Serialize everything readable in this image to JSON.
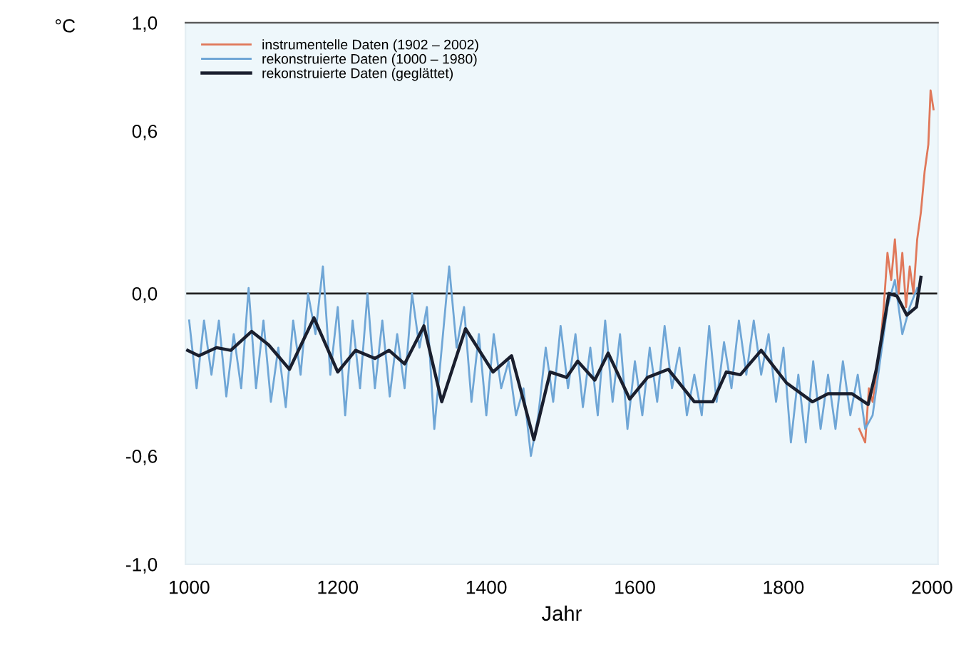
{
  "chart_data": {
    "type": "line",
    "xlabel": "Jahr",
    "ylabel": "°C",
    "xlim": [
      995,
      2008
    ],
    "ylim": [
      -1.0,
      1.0
    ],
    "xticks": [
      1000,
      1200,
      1400,
      1600,
      1800,
      2000
    ],
    "yticks": [
      {
        "value": 1.0,
        "label": "1,0"
      },
      {
        "value": 0.6,
        "label": "0,6"
      },
      {
        "value": 0.0,
        "label": "0,0"
      },
      {
        "value": -0.6,
        "label": "-0,6"
      },
      {
        "value": -1.0,
        "label": "-1,0"
      }
    ],
    "ref_lines": [
      {
        "axis": "y",
        "value": 0,
        "color": "#222222"
      }
    ],
    "legend": "top left",
    "grid": false,
    "series": [
      {
        "name": "instrumentelle Daten (1902 – 2002)",
        "color": "#e0785a",
        "x": [
          1902,
          1910,
          1915,
          1920,
          1925,
          1930,
          1935,
          1940,
          1945,
          1950,
          1955,
          1960,
          1965,
          1970,
          1975,
          1980,
          1985,
          1990,
          1995,
          1998,
          2002
        ],
        "values": [
          -0.5,
          -0.55,
          -0.35,
          -0.4,
          -0.3,
          -0.2,
          -0.05,
          0.15,
          0.05,
          0.2,
          0.0,
          0.15,
          -0.05,
          0.1,
          0.0,
          0.2,
          0.3,
          0.45,
          0.55,
          0.75,
          0.68
        ]
      },
      {
        "name": "rekonstruierte Daten (1000 – 1980)",
        "color": "#6fa6d6",
        "x": [
          1000,
          1010,
          1020,
          1030,
          1040,
          1050,
          1060,
          1070,
          1080,
          1090,
          1100,
          1110,
          1120,
          1130,
          1140,
          1150,
          1160,
          1170,
          1180,
          1190,
          1200,
          1210,
          1220,
          1230,
          1240,
          1250,
          1260,
          1270,
          1280,
          1290,
          1300,
          1310,
          1320,
          1330,
          1340,
          1350,
          1360,
          1370,
          1380,
          1390,
          1400,
          1410,
          1420,
          1430,
          1440,
          1450,
          1460,
          1470,
          1480,
          1490,
          1500,
          1510,
          1520,
          1530,
          1540,
          1550,
          1560,
          1570,
          1580,
          1590,
          1600,
          1610,
          1620,
          1630,
          1640,
          1650,
          1660,
          1670,
          1680,
          1690,
          1700,
          1710,
          1720,
          1730,
          1740,
          1750,
          1760,
          1770,
          1780,
          1790,
          1800,
          1810,
          1820,
          1830,
          1840,
          1850,
          1860,
          1870,
          1880,
          1890,
          1900,
          1910,
          1920,
          1930,
          1940,
          1950,
          1960,
          1970,
          1980
        ],
        "values": [
          -0.1,
          -0.35,
          -0.1,
          -0.3,
          -0.1,
          -0.38,
          -0.15,
          -0.35,
          0.02,
          -0.35,
          -0.1,
          -0.4,
          -0.2,
          -0.42,
          -0.1,
          -0.3,
          0.0,
          -0.15,
          0.1,
          -0.3,
          -0.05,
          -0.45,
          -0.1,
          -0.35,
          0.0,
          -0.35,
          -0.1,
          -0.38,
          -0.15,
          -0.35,
          0.0,
          -0.2,
          -0.05,
          -0.5,
          -0.2,
          0.1,
          -0.2,
          -0.05,
          -0.4,
          -0.15,
          -0.45,
          -0.15,
          -0.35,
          -0.25,
          -0.45,
          -0.35,
          -0.6,
          -0.45,
          -0.2,
          -0.4,
          -0.12,
          -0.35,
          -0.15,
          -0.42,
          -0.2,
          -0.45,
          -0.1,
          -0.4,
          -0.15,
          -0.5,
          -0.25,
          -0.45,
          -0.2,
          -0.4,
          -0.12,
          -0.35,
          -0.2,
          -0.45,
          -0.3,
          -0.45,
          -0.12,
          -0.4,
          -0.18,
          -0.35,
          -0.1,
          -0.3,
          -0.1,
          -0.3,
          -0.15,
          -0.4,
          -0.2,
          -0.55,
          -0.3,
          -0.55,
          -0.25,
          -0.5,
          -0.3,
          -0.5,
          -0.25,
          -0.45,
          -0.3,
          -0.5,
          -0.45,
          -0.25,
          -0.05,
          0.05,
          -0.15,
          -0.05,
          0.02
        ]
      },
      {
        "name": "rekonstruierte Daten (geglättet)",
        "color": "#1a1f2e",
        "x": [
          998,
          1013,
          1037,
          1056,
          1084,
          1107,
          1135,
          1168,
          1200,
          1224,
          1250,
          1269,
          1290,
          1316,
          1340,
          1372,
          1409,
          1434,
          1464,
          1486,
          1508,
          1523,
          1546,
          1564,
          1593,
          1617,
          1645,
          1680,
          1705,
          1723,
          1742,
          1770,
          1804,
          1839,
          1860,
          1892,
          1914,
          1925,
          1942,
          1953,
          1966,
          1979,
          1985
        ],
        "values": [
          -0.21,
          -0.23,
          -0.2,
          -0.21,
          -0.14,
          -0.19,
          -0.28,
          -0.09,
          -0.29,
          -0.21,
          -0.24,
          -0.21,
          -0.26,
          -0.12,
          -0.4,
          -0.13,
          -0.29,
          -0.23,
          -0.54,
          -0.29,
          -0.31,
          -0.25,
          -0.32,
          -0.22,
          -0.39,
          -0.31,
          -0.28,
          -0.4,
          -0.4,
          -0.29,
          -0.3,
          -0.21,
          -0.33,
          -0.4,
          -0.37,
          -0.37,
          -0.41,
          -0.28,
          0.0,
          -0.01,
          -0.08,
          -0.05,
          0.06
        ]
      }
    ]
  }
}
